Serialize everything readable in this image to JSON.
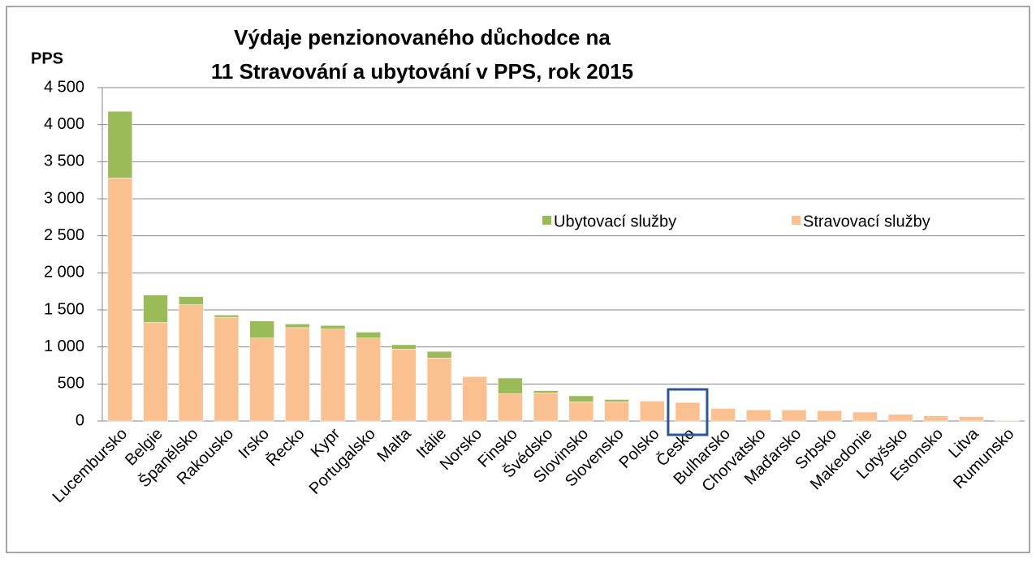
{
  "chart_data": {
    "type": "stacked_bar",
    "title": [
      "Výdaje penzionovaného důchodce na",
      "11 Stravování a ubytování v PPS, rok 2015"
    ],
    "y_label": "PPS",
    "categories": [
      "Lucembursko",
      "Belgie",
      "Španělsko",
      "Rakousko",
      "Irsko",
      "Řecko",
      "Kypr",
      "Portugalsko",
      "Malta",
      "Itálie",
      "Norsko",
      "Finsko",
      "Švédsko",
      "Slovinsko",
      "Slovensko",
      "Polsko",
      "Česko",
      "Bulharsko",
      "Chorvatsko",
      "Maďarsko",
      "Srbsko",
      "Makedonie",
      "Lotyšsko",
      "Estonsko",
      "Litva",
      "Rumunsko"
    ],
    "series": [
      {
        "name": "Stravovací služby",
        "color": "#fac090",
        "values": [
          3280,
          1330,
          1570,
          1400,
          1120,
          1260,
          1240,
          1120,
          970,
          850,
          600,
          370,
          380,
          260,
          260,
          270,
          250,
          170,
          150,
          150,
          140,
          120,
          90,
          70,
          60,
          10
        ]
      },
      {
        "name": "Ubytovací služby",
        "color": "#9bbb59",
        "values": [
          900,
          370,
          110,
          30,
          230,
          50,
          50,
          80,
          60,
          90,
          0,
          210,
          30,
          80,
          30,
          5,
          5,
          0,
          0,
          0,
          0,
          0,
          0,
          0,
          0,
          0
        ]
      }
    ],
    "ylim": [
      0,
      4500
    ],
    "yticks": [
      0,
      500,
      {
        "value": 1000,
        "label": "1 000"
      },
      {
        "value": 1500,
        "label": "1 500"
      },
      {
        "value": 2000,
        "label": "2 000"
      },
      {
        "value": 2500,
        "label": "2 500"
      },
      {
        "value": 3000,
        "label": "3 000"
      },
      {
        "value": 3500,
        "label": "3 500"
      },
      {
        "value": 4000,
        "label": "4 000"
      },
      {
        "value": 4500,
        "label": "4 500"
      }
    ],
    "grid": true
  }
}
